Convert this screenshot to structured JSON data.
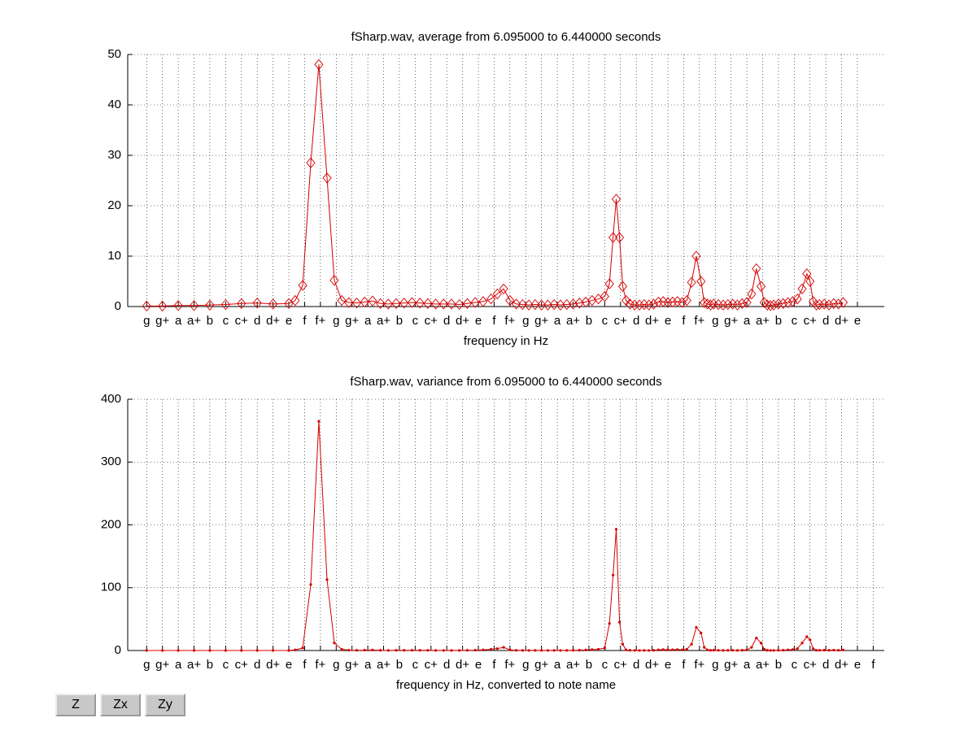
{
  "chart_data": [
    {
      "type": "line",
      "title": "fSharp.wav, average from 6.095000 to 6.440000 seconds",
      "xlabel": "frequency in Hz",
      "grid": true,
      "xlim": [
        -1.2,
        46.7
      ],
      "ylim": [
        0,
        50
      ],
      "yticks": [
        0,
        10,
        20,
        30,
        40,
        50
      ],
      "xticks": [
        {
          "value": 0,
          "label": "g"
        },
        {
          "value": 1,
          "label": "g+"
        },
        {
          "value": 2,
          "label": "a"
        },
        {
          "value": 3,
          "label": "a+"
        },
        {
          "value": 4,
          "label": "b"
        },
        {
          "value": 5,
          "label": "c"
        },
        {
          "value": 6,
          "label": "c+"
        },
        {
          "value": 7,
          "label": "d"
        },
        {
          "value": 8,
          "label": "d+"
        },
        {
          "value": 9,
          "label": "e"
        },
        {
          "value": 10,
          "label": "f"
        },
        {
          "value": 11,
          "label": "f+"
        },
        {
          "value": 12,
          "label": "g"
        },
        {
          "value": 13,
          "label": "g+"
        },
        {
          "value": 14,
          "label": "a"
        },
        {
          "value": 15,
          "label": "a+"
        },
        {
          "value": 16,
          "label": "b"
        },
        {
          "value": 17,
          "label": "c"
        },
        {
          "value": 18,
          "label": "c+"
        },
        {
          "value": 19,
          "label": "d"
        },
        {
          "value": 20,
          "label": "d+"
        },
        {
          "value": 21,
          "label": "e"
        },
        {
          "value": 22,
          "label": "f"
        },
        {
          "value": 23,
          "label": "f+"
        },
        {
          "value": 24,
          "label": "g"
        },
        {
          "value": 25,
          "label": "g+"
        },
        {
          "value": 26,
          "label": "a"
        },
        {
          "value": 27,
          "label": "a+"
        },
        {
          "value": 28,
          "label": "b"
        },
        {
          "value": 29,
          "label": "c"
        },
        {
          "value": 30,
          "label": "c+"
        },
        {
          "value": 31,
          "label": "d"
        },
        {
          "value": 32,
          "label": "d+"
        },
        {
          "value": 33,
          "label": "e"
        },
        {
          "value": 34,
          "label": "f"
        },
        {
          "value": 35,
          "label": "f+"
        },
        {
          "value": 36,
          "label": "g"
        },
        {
          "value": 37,
          "label": "g+"
        },
        {
          "value": 38,
          "label": "a"
        },
        {
          "value": 39,
          "label": "a+"
        },
        {
          "value": 40,
          "label": "b"
        },
        {
          "value": 41,
          "label": "c"
        },
        {
          "value": 42,
          "label": "c+"
        },
        {
          "value": 43,
          "label": "d"
        },
        {
          "value": 44,
          "label": "d+"
        },
        {
          "value": 45,
          "label": "e"
        }
      ],
      "x": [
        0,
        1,
        2,
        3,
        4,
        5,
        6,
        7,
        8,
        9,
        9.4,
        9.88,
        10.39,
        10.9,
        11.42,
        11.88,
        12.35,
        12.8,
        13.3,
        13.8,
        14.3,
        14.8,
        15.3,
        15.8,
        16.3,
        16.8,
        17.3,
        17.8,
        18.3,
        18.8,
        19.3,
        19.8,
        20.3,
        20.8,
        21.3,
        21.8,
        22.2,
        22.6,
        23.0,
        23.4,
        23.8,
        24.2,
        24.6,
        25.0,
        25.4,
        25.8,
        26.2,
        26.6,
        27.0,
        27.4,
        27.8,
        28.2,
        28.6,
        29.0,
        29.3,
        29.53,
        29.73,
        29.94,
        30.14,
        30.35,
        30.6,
        30.9,
        31.2,
        31.5,
        31.8,
        32.1,
        32.4,
        32.7,
        33.0,
        33.3,
        33.6,
        33.9,
        34.2,
        34.5,
        34.8,
        35.1,
        35.3,
        35.5,
        35.7,
        35.9,
        36.2,
        36.5,
        36.8,
        37.1,
        37.4,
        37.7,
        38.0,
        38.3,
        38.6,
        38.9,
        39.1,
        39.3,
        39.5,
        39.7,
        40.0,
        40.3,
        40.6,
        40.9,
        41.2,
        41.5,
        41.8,
        42.0,
        42.2,
        42.4,
        42.6,
        42.9,
        43.2,
        43.5,
        43.8,
        44.1
      ],
      "series": [
        {
          "color": "#d40000",
          "marker": "diamond",
          "values": [
            0.1,
            0.1,
            0.2,
            0.2,
            0.3,
            0.4,
            0.6,
            0.7,
            0.5,
            0.6,
            1.2,
            4.2,
            28.5,
            48,
            25.5,
            5.2,
            1.2,
            0.8,
            0.7,
            0.9,
            1.1,
            0.6,
            0.5,
            0.6,
            0.7,
            0.8,
            0.7,
            0.6,
            0.5,
            0.5,
            0.5,
            0.4,
            0.6,
            0.8,
            1.0,
            1.5,
            2.5,
            3.5,
            1.2,
            0.5,
            0.4,
            0.3,
            0.4,
            0.3,
            0.3,
            0.4,
            0.3,
            0.4,
            0.5,
            0.7,
            0.9,
            1.2,
            1.5,
            2.0,
            4.5,
            13.7,
            21.3,
            13.7,
            4.0,
            1.2,
            0.5,
            0.3,
            0.3,
            0.4,
            0.3,
            0.5,
            0.9,
            1.0,
            0.8,
            0.9,
            1.0,
            0.8,
            1.2,
            4.8,
            10.0,
            5.0,
            0.8,
            0.5,
            0.3,
            0.5,
            0.4,
            0.3,
            0.4,
            0.5,
            0.3,
            0.6,
            0.8,
            2.5,
            7.5,
            4.0,
            0.8,
            0.3,
            0.2,
            0.3,
            0.5,
            0.6,
            0.8,
            1.0,
            1.5,
            3.5,
            6.5,
            5.0,
            1.0,
            0.3,
            0.4,
            0.5,
            0.3,
            0.6,
            0.5,
            0.8
          ]
        }
      ]
    },
    {
      "type": "line",
      "title": "fSharp.wav, variance from 6.095000 to 6.440000 seconds",
      "xlabel": "frequency in Hz, converted to note name",
      "grid": true,
      "xlim": [
        -1.2,
        46.7
      ],
      "ylim": [
        0,
        400
      ],
      "yticks": [
        0,
        100,
        200,
        300,
        400
      ],
      "xticks": [
        {
          "value": 0,
          "label": "g"
        },
        {
          "value": 1,
          "label": "g+"
        },
        {
          "value": 2,
          "label": "a"
        },
        {
          "value": 3,
          "label": "a+"
        },
        {
          "value": 4,
          "label": "b"
        },
        {
          "value": 5,
          "label": "c"
        },
        {
          "value": 6,
          "label": "c+"
        },
        {
          "value": 7,
          "label": "d"
        },
        {
          "value": 8,
          "label": "d+"
        },
        {
          "value": 9,
          "label": "e"
        },
        {
          "value": 10,
          "label": "f"
        },
        {
          "value": 11,
          "label": "f+"
        },
        {
          "value": 12,
          "label": "g"
        },
        {
          "value": 13,
          "label": "g+"
        },
        {
          "value": 14,
          "label": "a"
        },
        {
          "value": 15,
          "label": "a+"
        },
        {
          "value": 16,
          "label": "b"
        },
        {
          "value": 17,
          "label": "c"
        },
        {
          "value": 18,
          "label": "c+"
        },
        {
          "value": 19,
          "label": "d"
        },
        {
          "value": 20,
          "label": "d+"
        },
        {
          "value": 21,
          "label": "e"
        },
        {
          "value": 22,
          "label": "f"
        },
        {
          "value": 23,
          "label": "f+"
        },
        {
          "value": 24,
          "label": "g"
        },
        {
          "value": 25,
          "label": "g+"
        },
        {
          "value": 26,
          "label": "a"
        },
        {
          "value": 27,
          "label": "a+"
        },
        {
          "value": 28,
          "label": "b"
        },
        {
          "value": 29,
          "label": "c"
        },
        {
          "value": 30,
          "label": "c+"
        },
        {
          "value": 31,
          "label": "d"
        },
        {
          "value": 32,
          "label": "d+"
        },
        {
          "value": 33,
          "label": "e"
        },
        {
          "value": 34,
          "label": "f"
        },
        {
          "value": 35,
          "label": "f+"
        },
        {
          "value": 36,
          "label": "g"
        },
        {
          "value": 37,
          "label": "g+"
        },
        {
          "value": 38,
          "label": "a"
        },
        {
          "value": 39,
          "label": "a+"
        },
        {
          "value": 40,
          "label": "b"
        },
        {
          "value": 41,
          "label": "c"
        },
        {
          "value": 42,
          "label": "c+"
        },
        {
          "value": 43,
          "label": "d"
        },
        {
          "value": 44,
          "label": "d+"
        },
        {
          "value": 45,
          "label": "e"
        },
        {
          "value": 46,
          "label": "f"
        }
      ],
      "x": [
        0,
        1,
        2,
        3,
        4,
        5,
        6,
        7,
        8,
        9,
        9.4,
        9.88,
        10.39,
        10.9,
        11.42,
        11.88,
        12.35,
        12.8,
        13.3,
        13.8,
        14.3,
        14.8,
        15.3,
        15.8,
        16.3,
        16.8,
        17.3,
        17.8,
        18.3,
        18.8,
        19.3,
        19.8,
        20.3,
        20.8,
        21.3,
        21.8,
        22.2,
        22.6,
        23.0,
        23.4,
        23.8,
        24.2,
        24.6,
        25.0,
        25.4,
        25.8,
        26.2,
        26.6,
        27.0,
        27.4,
        27.8,
        28.2,
        28.6,
        29.0,
        29.3,
        29.53,
        29.73,
        29.94,
        30.14,
        30.35,
        30.6,
        30.9,
        31.2,
        31.5,
        31.8,
        32.1,
        32.4,
        32.7,
        33.0,
        33.3,
        33.6,
        33.9,
        34.2,
        34.5,
        34.8,
        35.1,
        35.3,
        35.5,
        35.7,
        35.9,
        36.2,
        36.5,
        36.8,
        37.1,
        37.4,
        37.7,
        38.0,
        38.3,
        38.6,
        38.9,
        39.1,
        39.3,
        39.5,
        39.7,
        40.0,
        40.3,
        40.6,
        40.9,
        41.2,
        41.5,
        41.8,
        42.0,
        42.2,
        42.4,
        42.6,
        42.9,
        43.2,
        43.5,
        43.8,
        44.1
      ],
      "series": [
        {
          "color": "#d40000",
          "marker": "dot",
          "values": [
            0,
            0,
            0,
            0,
            0,
            0,
            0,
            0,
            0,
            0,
            1,
            4,
            105,
            365,
            113,
            12,
            2,
            0.5,
            0.3,
            0.5,
            0.8,
            0.3,
            0.2,
            0.3,
            0.3,
            0.4,
            0.3,
            0.3,
            0.2,
            0.2,
            0.2,
            0.2,
            0.3,
            0.5,
            1,
            2,
            3,
            5,
            1,
            0.3,
            0.2,
            0.1,
            0.2,
            0.1,
            0.1,
            0.2,
            0.1,
            0.2,
            0.3,
            0.5,
            0.8,
            1.5,
            2,
            4,
            43,
            120,
            193,
            45,
            10,
            1,
            0.3,
            0.1,
            0.1,
            0.2,
            0.1,
            0.3,
            1,
            1.5,
            1,
            1.2,
            1.5,
            1,
            2,
            10,
            37,
            28,
            5,
            1,
            0.3,
            0.5,
            0.3,
            0.2,
            0.3,
            0.4,
            0.2,
            0.5,
            1,
            5,
            20,
            12,
            2,
            0.3,
            0.1,
            0.2,
            0.4,
            0.5,
            1,
            1.5,
            3,
            12,
            22,
            17,
            3,
            0.3,
            0.4,
            0.5,
            0.3,
            0.6,
            0.4,
            0.8
          ]
        }
      ]
    }
  ],
  "buttons": [
    "Z",
    "Zx",
    "Zy"
  ]
}
